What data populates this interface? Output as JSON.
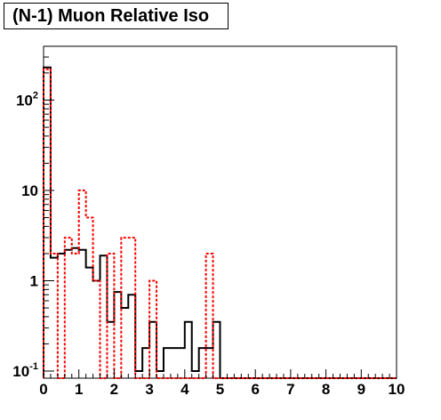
{
  "chart_data": {
    "type": "histogram",
    "title": "(N-1) Muon Relative Iso",
    "xlabel": "",
    "ylabel": "",
    "xlim": [
      0,
      10
    ],
    "ylim": [
      0.1,
      400
    ],
    "y_scale": "log",
    "grid": false,
    "legend": "none",
    "bin_width": 0.2,
    "x_ticks": [
      0,
      1,
      2,
      3,
      4,
      5,
      6,
      7,
      8,
      9,
      10
    ],
    "x_tick_labels": [
      "0",
      "1",
      "2",
      "3",
      "4",
      "5",
      "6",
      "7",
      "8",
      "9",
      "10"
    ],
    "y_ticks": [
      {
        "value": 0.1,
        "base": "10",
        "exp": "-1"
      },
      {
        "value": 1,
        "base": "1",
        "exp": ""
      },
      {
        "value": 10,
        "base": "10",
        "exp": ""
      },
      {
        "value": 100,
        "base": "10",
        "exp": "2"
      }
    ],
    "series": [
      {
        "color": "#000000",
        "style": "solid",
        "values": [
          230,
          1.8,
          2.0,
          2.2,
          2.3,
          2.2,
          1.4,
          1.0,
          1.9,
          0.35,
          0.75,
          0.5,
          0.7,
          0.1,
          0.18,
          0.35,
          0.1,
          0.18,
          0.18,
          0.18,
          0.35,
          0.1,
          0.18,
          0.18,
          0.35,
          0,
          0,
          0,
          0,
          0,
          0,
          0,
          0,
          0,
          0,
          0,
          0,
          0,
          0,
          0,
          0,
          0,
          0,
          0,
          0,
          0,
          0,
          0,
          0,
          0
        ]
      },
      {
        "color": "#ff0000",
        "style": "dashed",
        "values": [
          220,
          2.0,
          0,
          3.0,
          2.0,
          10.0,
          5.0,
          1.0,
          0,
          2.0,
          0,
          3.0,
          3.0,
          0,
          0,
          1.0,
          0,
          0,
          0,
          0,
          0,
          0,
          0,
          2.0,
          0,
          0,
          0,
          0,
          0,
          0,
          0,
          0,
          0,
          0,
          0,
          0,
          0,
          0,
          0,
          0,
          0,
          0,
          0,
          0,
          0,
          0,
          0,
          0,
          0,
          0
        ]
      }
    ]
  }
}
